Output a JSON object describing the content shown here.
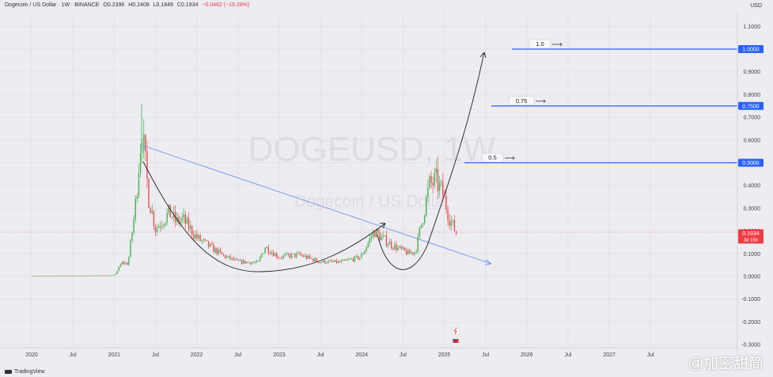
{
  "header": {
    "symbol": "Dogecoin / US Dollar · 1W · BINANCE",
    "o": "O0.2396",
    "h": "H0.2408",
    "l": "L0.1849",
    "c": "C0.1934",
    "chg": "−0.0462 (−19.28%)"
  },
  "unit_label": "USD",
  "brand": "TradingView",
  "watermark_big": "DOGEUSD, 1W",
  "watermark_small": "Dogecoin / US Dollar",
  "corner_watermark": "@加密甜筒",
  "price_tag": {
    "value": "0.1934",
    "sub": "3d 15h",
    "color": "#f03c43"
  },
  "colors": {
    "up": "#4caf50",
    "down": "#ef4b55",
    "trend": "#6d93ee",
    "level": "#2962ff"
  },
  "chart_data": {
    "type": "candlestick",
    "x_ticks": [
      "2020",
      "Jul",
      "2021",
      "Jul",
      "2022",
      "Jul",
      "2023",
      "Jul",
      "2024",
      "Jul",
      "2025",
      "Jul",
      "2026",
      "Jul",
      "2027",
      "Jul"
    ],
    "y_ticks": [
      "1.1000",
      "1.0000",
      "0.9000",
      "0.8000",
      "0.7000",
      "0.6000",
      "0.5000",
      "0.4000",
      "0.3000",
      "0.2000",
      "0.1000",
      "0.0000",
      "-0.1000",
      "-0.2000",
      "-0.3000"
    ],
    "y_range": [
      -0.3,
      1.1
    ],
    "series": [
      {
        "name": "",
        "points": [
          [
            "2020-01-01",
            0.002
          ],
          [
            "2020-07-01",
            0.003
          ],
          [
            "2021-01-01",
            0.005
          ],
          [
            "2021-02-01",
            0.06
          ],
          [
            "2021-03-01",
            0.055
          ],
          [
            "2021-04-01",
            0.29
          ],
          [
            "2021-05-01",
            0.65
          ],
          [
            "2021-06-01",
            0.35
          ],
          [
            "2021-07-01",
            0.21
          ],
          [
            "2021-09-01",
            0.28
          ],
          [
            "2021-10-01",
            0.24
          ],
          [
            "2021-11-01",
            0.25
          ],
          [
            "2022-01-01",
            0.17
          ],
          [
            "2022-03-01",
            0.13
          ],
          [
            "2022-05-01",
            0.09
          ],
          [
            "2022-07-01",
            0.065
          ],
          [
            "2022-10-01",
            0.06
          ],
          [
            "2022-11-01",
            0.13
          ],
          [
            "2023-01-01",
            0.085
          ],
          [
            "2023-04-01",
            0.095
          ],
          [
            "2023-07-01",
            0.065
          ],
          [
            "2023-10-01",
            0.062
          ],
          [
            "2024-01-01",
            0.085
          ],
          [
            "2024-03-01",
            0.2
          ],
          [
            "2024-04-01",
            0.17
          ],
          [
            "2024-06-01",
            0.13
          ],
          [
            "2024-08-01",
            0.1
          ],
          [
            "2024-09-01",
            0.11
          ],
          [
            "2024-11-01",
            0.4
          ],
          [
            "2024-12-01",
            0.42
          ],
          [
            "2025-01-01",
            0.36
          ],
          [
            "2025-02-01",
            0.25
          ],
          [
            "2025-03-01",
            0.19
          ]
        ]
      }
    ],
    "levels": [
      {
        "label": "1.0",
        "value": 1.0,
        "tag": "1.0000"
      },
      {
        "label": "0.75",
        "value": 0.75,
        "tag": "0.7500"
      },
      {
        "label": "0.5",
        "value": 0.5,
        "tag": "0.5000"
      }
    ],
    "current_price": 0.1934
  }
}
